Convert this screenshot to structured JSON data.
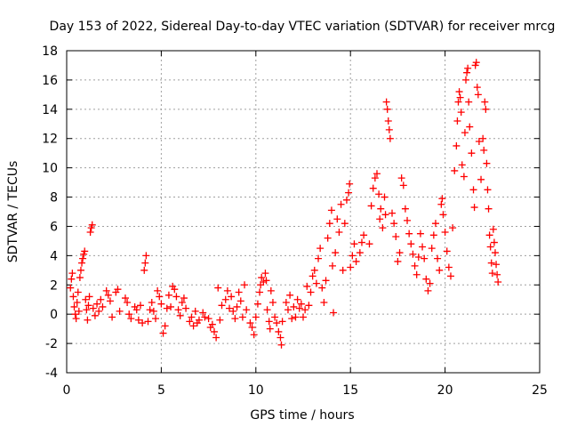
{
  "chart_data": {
    "type": "scatter",
    "title": "Day 153 of 2022, Sidereal Day-to-day VTEC variation (SDTVAR) for receiver mrcg",
    "xlabel": "GPS time / hours",
    "ylabel": "SDTVAR / TECUs",
    "xlim": [
      0,
      25
    ],
    "ylim": [
      -4,
      18
    ],
    "xticks": [
      0,
      5,
      10,
      15,
      20,
      25
    ],
    "yticks": [
      -4,
      -2,
      0,
      2,
      4,
      6,
      8,
      10,
      12,
      14,
      16,
      18
    ],
    "grid": true,
    "marker": "+",
    "color": "#ff0000",
    "series": [
      {
        "name": "SDTVAR",
        "points": [
          [
            0.2,
            1.8
          ],
          [
            0.25,
            2.4
          ],
          [
            0.3,
            2.8
          ],
          [
            0.35,
            1.2
          ],
          [
            0.4,
            0.5
          ],
          [
            0.45,
            0.0
          ],
          [
            0.5,
            -0.3
          ],
          [
            0.55,
            0.8
          ],
          [
            0.6,
            1.5
          ],
          [
            0.65,
            0.2
          ],
          [
            0.7,
            2.5
          ],
          [
            0.75,
            3.0
          ],
          [
            0.8,
            3.5
          ],
          [
            0.85,
            3.8
          ],
          [
            0.9,
            4.1
          ],
          [
            0.95,
            4.3
          ],
          [
            1.0,
            1.0
          ],
          [
            1.05,
            0.3
          ],
          [
            1.1,
            -0.4
          ],
          [
            1.15,
            0.6
          ],
          [
            1.2,
            1.2
          ],
          [
            1.25,
            5.6
          ],
          [
            1.3,
            5.9
          ],
          [
            1.35,
            6.1
          ],
          [
            1.4,
            0.4
          ],
          [
            1.5,
            -0.1
          ],
          [
            1.6,
            0.7
          ],
          [
            1.7,
            0.2
          ],
          [
            1.8,
            1.0
          ],
          [
            1.9,
            0.5
          ],
          [
            2.1,
            1.6
          ],
          [
            2.2,
            1.3
          ],
          [
            2.3,
            0.9
          ],
          [
            2.4,
            -0.2
          ],
          [
            2.6,
            1.5
          ],
          [
            2.7,
            1.7
          ],
          [
            2.8,
            0.2
          ],
          [
            3.1,
            1.1
          ],
          [
            3.2,
            0.8
          ],
          [
            3.3,
            0.0
          ],
          [
            3.4,
            -0.3
          ],
          [
            3.6,
            0.5
          ],
          [
            3.7,
            0.3
          ],
          [
            3.8,
            -0.4
          ],
          [
            3.9,
            0.6
          ],
          [
            4.0,
            -0.6
          ],
          [
            4.1,
            3.0
          ],
          [
            4.15,
            3.5
          ],
          [
            4.2,
            4.0
          ],
          [
            4.3,
            -0.5
          ],
          [
            4.4,
            0.3
          ],
          [
            4.5,
            0.8
          ],
          [
            4.6,
            0.2
          ],
          [
            4.7,
            -0.3
          ],
          [
            4.8,
            1.6
          ],
          [
            4.9,
            1.2
          ],
          [
            5.0,
            0.7
          ],
          [
            5.1,
            -1.3
          ],
          [
            5.2,
            -0.8
          ],
          [
            5.3,
            0.4
          ],
          [
            5.4,
            1.3
          ],
          [
            5.5,
            0.5
          ],
          [
            5.6,
            1.9
          ],
          [
            5.7,
            1.7
          ],
          [
            5.8,
            1.2
          ],
          [
            5.9,
            0.3
          ],
          [
            6.0,
            -0.1
          ],
          [
            6.1,
            0.8
          ],
          [
            6.2,
            1.1
          ],
          [
            6.3,
            0.4
          ],
          [
            6.5,
            -0.5
          ],
          [
            6.6,
            -0.2
          ],
          [
            6.7,
            -0.8
          ],
          [
            6.8,
            0.2
          ],
          [
            6.9,
            -0.6
          ],
          [
            7.0,
            -0.4
          ],
          [
            7.2,
            0.1
          ],
          [
            7.3,
            -0.2
          ],
          [
            7.5,
            -0.3
          ],
          [
            7.6,
            -0.9
          ],
          [
            7.7,
            -0.7
          ],
          [
            7.8,
            -1.2
          ],
          [
            7.9,
            -1.6
          ],
          [
            8.0,
            1.8
          ],
          [
            8.1,
            -0.4
          ],
          [
            8.2,
            0.6
          ],
          [
            8.4,
            1.0
          ],
          [
            8.5,
            1.6
          ],
          [
            8.6,
            0.4
          ],
          [
            8.7,
            1.2
          ],
          [
            8.8,
            0.2
          ],
          [
            8.9,
            -0.3
          ],
          [
            9.0,
            0.5
          ],
          [
            9.1,
            1.5
          ],
          [
            9.2,
            0.9
          ],
          [
            9.3,
            -0.2
          ],
          [
            9.4,
            2.0
          ],
          [
            9.5,
            0.3
          ],
          [
            9.7,
            -0.6
          ],
          [
            9.8,
            -0.9
          ],
          [
            9.9,
            -1.4
          ],
          [
            10.0,
            -0.2
          ],
          [
            10.1,
            0.7
          ],
          [
            10.2,
            1.5
          ],
          [
            10.25,
            2.0
          ],
          [
            10.3,
            2.5
          ],
          [
            10.4,
            2.2
          ],
          [
            10.5,
            2.8
          ],
          [
            10.55,
            2.3
          ],
          [
            10.6,
            0.3
          ],
          [
            10.7,
            -0.5
          ],
          [
            10.75,
            -1.0
          ],
          [
            10.8,
            1.6
          ],
          [
            10.9,
            0.8
          ],
          [
            11.0,
            -0.2
          ],
          [
            11.1,
            -0.6
          ],
          [
            11.2,
            -1.2
          ],
          [
            11.3,
            -1.6
          ],
          [
            11.35,
            -2.1
          ],
          [
            11.4,
            -0.5
          ],
          [
            11.6,
            0.8
          ],
          [
            11.7,
            0.3
          ],
          [
            11.8,
            1.3
          ],
          [
            11.9,
            -0.3
          ],
          [
            12.0,
            0.5
          ],
          [
            12.1,
            -0.2
          ],
          [
            12.2,
            1.0
          ],
          [
            12.3,
            0.4
          ],
          [
            12.4,
            0.7
          ],
          [
            12.5,
            -0.2
          ],
          [
            12.6,
            0.3
          ],
          [
            12.7,
            1.9
          ],
          [
            12.8,
            0.6
          ],
          [
            12.9,
            1.5
          ],
          [
            13.0,
            2.6
          ],
          [
            13.1,
            3.0
          ],
          [
            13.2,
            2.1
          ],
          [
            13.3,
            3.8
          ],
          [
            13.4,
            4.5
          ],
          [
            13.5,
            1.8
          ],
          [
            13.6,
            0.8
          ],
          [
            13.7,
            2.3
          ],
          [
            13.8,
            5.2
          ],
          [
            13.9,
            6.2
          ],
          [
            14.0,
            7.1
          ],
          [
            14.05,
            3.3
          ],
          [
            14.1,
            0.1
          ],
          [
            14.2,
            4.2
          ],
          [
            14.3,
            6.5
          ],
          [
            14.4,
            5.6
          ],
          [
            14.5,
            7.5
          ],
          [
            14.6,
            3.0
          ],
          [
            14.7,
            6.2
          ],
          [
            14.8,
            7.8
          ],
          [
            14.9,
            8.3
          ],
          [
            14.95,
            8.9
          ],
          [
            15.0,
            3.2
          ],
          [
            15.1,
            4.0
          ],
          [
            15.2,
            4.8
          ],
          [
            15.3,
            3.6
          ],
          [
            15.5,
            4.2
          ],
          [
            15.6,
            4.9
          ],
          [
            15.7,
            5.4
          ],
          [
            16.0,
            4.8
          ],
          [
            16.1,
            7.4
          ],
          [
            16.2,
            8.6
          ],
          [
            16.3,
            9.3
          ],
          [
            16.4,
            9.6
          ],
          [
            16.5,
            8.2
          ],
          [
            16.55,
            6.5
          ],
          [
            16.6,
            7.2
          ],
          [
            16.7,
            5.9
          ],
          [
            16.8,
            8.0
          ],
          [
            16.85,
            6.8
          ],
          [
            16.9,
            14.5
          ],
          [
            16.95,
            14.0
          ],
          [
            17.0,
            13.2
          ],
          [
            17.05,
            12.6
          ],
          [
            17.1,
            12.0
          ],
          [
            17.2,
            6.9
          ],
          [
            17.3,
            6.2
          ],
          [
            17.4,
            5.3
          ],
          [
            17.5,
            3.6
          ],
          [
            17.6,
            4.2
          ],
          [
            17.7,
            9.3
          ],
          [
            17.8,
            8.8
          ],
          [
            17.9,
            7.2
          ],
          [
            18.0,
            6.4
          ],
          [
            18.1,
            5.5
          ],
          [
            18.2,
            4.8
          ],
          [
            18.3,
            4.1
          ],
          [
            18.4,
            3.3
          ],
          [
            18.5,
            2.7
          ],
          [
            18.6,
            3.9
          ],
          [
            18.7,
            5.5
          ],
          [
            18.8,
            4.6
          ],
          [
            18.9,
            3.8
          ],
          [
            19.0,
            2.4
          ],
          [
            19.1,
            1.6
          ],
          [
            19.2,
            2.1
          ],
          [
            19.3,
            4.5
          ],
          [
            19.4,
            5.4
          ],
          [
            19.5,
            6.2
          ],
          [
            19.6,
            3.8
          ],
          [
            19.7,
            3.0
          ],
          [
            19.8,
            7.5
          ],
          [
            19.85,
            7.9
          ],
          [
            19.9,
            6.8
          ],
          [
            20.0,
            5.6
          ],
          [
            20.1,
            4.3
          ],
          [
            20.2,
            3.2
          ],
          [
            20.3,
            2.6
          ],
          [
            20.4,
            5.9
          ],
          [
            20.5,
            9.8
          ],
          [
            20.6,
            11.5
          ],
          [
            20.65,
            13.2
          ],
          [
            20.7,
            14.5
          ],
          [
            20.75,
            15.2
          ],
          [
            20.8,
            14.8
          ],
          [
            20.85,
            13.8
          ],
          [
            20.9,
            10.2
          ],
          [
            21.0,
            9.4
          ],
          [
            21.05,
            12.4
          ],
          [
            21.1,
            16.0
          ],
          [
            21.15,
            16.5
          ],
          [
            21.2,
            16.8
          ],
          [
            21.25,
            14.5
          ],
          [
            21.3,
            12.8
          ],
          [
            21.4,
            11.0
          ],
          [
            21.5,
            8.5
          ],
          [
            21.55,
            7.3
          ],
          [
            21.6,
            17.0
          ],
          [
            21.65,
            17.2
          ],
          [
            21.7,
            15.5
          ],
          [
            21.75,
            15.0
          ],
          [
            21.8,
            11.8
          ],
          [
            21.9,
            9.2
          ],
          [
            22.0,
            12.0
          ],
          [
            22.05,
            11.2
          ],
          [
            22.1,
            14.5
          ],
          [
            22.15,
            14.0
          ],
          [
            22.2,
            10.3
          ],
          [
            22.25,
            8.5
          ],
          [
            22.3,
            7.2
          ],
          [
            22.35,
            5.4
          ],
          [
            22.4,
            4.6
          ],
          [
            22.45,
            3.5
          ],
          [
            22.5,
            2.8
          ],
          [
            22.55,
            5.8
          ],
          [
            22.6,
            4.9
          ],
          [
            22.65,
            4.2
          ],
          [
            22.7,
            3.4
          ],
          [
            22.75,
            2.7
          ],
          [
            22.8,
            2.2
          ]
        ]
      }
    ]
  }
}
